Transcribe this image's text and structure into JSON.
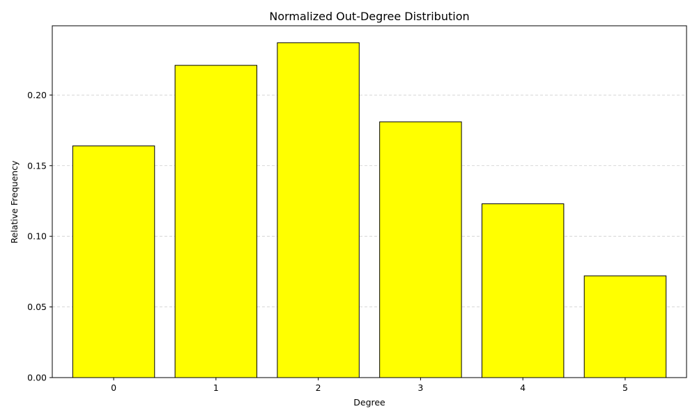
{
  "chart_data": {
    "type": "bar",
    "title": "Normalized Out-Degree Distribution",
    "xlabel": "Degree",
    "ylabel": "Relative Frequency",
    "categories": [
      "0",
      "1",
      "2",
      "3",
      "4",
      "5"
    ],
    "values": [
      0.164,
      0.221,
      0.237,
      0.181,
      0.123,
      0.072
    ],
    "ylim": [
      0,
      0.249
    ],
    "yticks": [
      0.0,
      0.05,
      0.1,
      0.15,
      0.2
    ],
    "ytick_labels": [
      "0.00",
      "0.05",
      "0.10",
      "0.15",
      "0.20"
    ],
    "grid": "y-dashed",
    "bar_color": "#ffff00",
    "edge_color": "#000000",
    "grid_color": "#cccccc"
  }
}
